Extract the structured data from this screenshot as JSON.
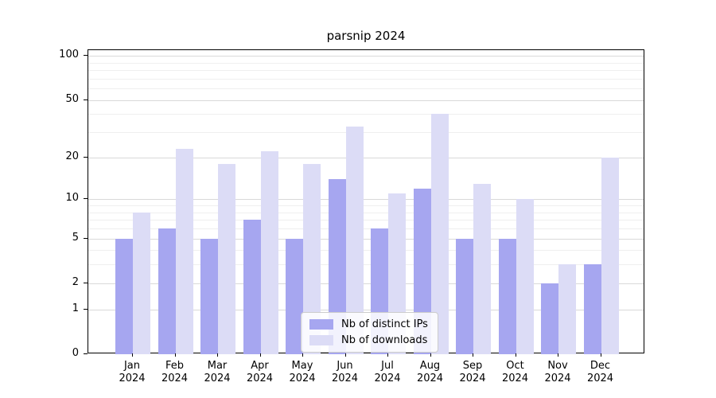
{
  "title": "parsnip 2024",
  "chart_data": {
    "type": "bar",
    "title": "parsnip 2024",
    "categories": [
      "Jan 2024",
      "Feb 2024",
      "Mar 2024",
      "Apr 2024",
      "May 2024",
      "Jun 2024",
      "Jul 2024",
      "Aug 2024",
      "Sep 2024",
      "Oct 2024",
      "Nov 2024",
      "Dec 2024"
    ],
    "x_tick_months": [
      "Jan",
      "Feb",
      "Mar",
      "Apr",
      "May",
      "Jun",
      "Jul",
      "Aug",
      "Sep",
      "Oct",
      "Nov",
      "Dec"
    ],
    "x_tick_year": "2024",
    "series": [
      {
        "name": "Nb of distinct IPs",
        "color": "#a6a6f0",
        "values": [
          5,
          6,
          5,
          7,
          5,
          14,
          6,
          12,
          5,
          5,
          2,
          3
        ]
      },
      {
        "name": "Nb of downloads",
        "color": "#dcdcf6",
        "values": [
          8,
          23,
          18,
          22,
          18,
          33,
          11,
          40,
          13,
          10,
          3,
          20
        ]
      }
    ],
    "xlabel": "",
    "ylabel": "",
    "yscale": "log1p",
    "ylim": [
      0,
      110
    ],
    "y_major_ticks": [
      0,
      1,
      2,
      5,
      10,
      20,
      50,
      100
    ],
    "y_tick_labels": [
      "0",
      "1",
      "2",
      "5",
      "10",
      "20",
      "50",
      "100"
    ],
    "y_minor_gridlines": [
      3,
      4,
      6,
      7,
      8,
      9,
      30,
      40,
      60,
      70,
      80,
      90
    ],
    "grid": true,
    "legend_position": "lower center"
  }
}
